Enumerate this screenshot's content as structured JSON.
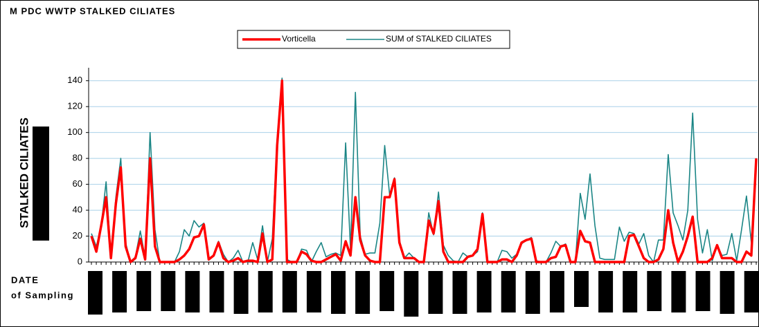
{
  "chart_data": {
    "type": "line",
    "title": "M PDC WWTP STALKED CILIATES",
    "y_label": "STALKED CILIATES",
    "x_label_line1": "DATE",
    "x_label_line2": "of Sampling",
    "ylim": [
      0,
      150
    ],
    "yticks": [
      0,
      20,
      40,
      60,
      80,
      100,
      120,
      140
    ],
    "grid": true,
    "legend": "top",
    "categories": [
      null,
      null,
      null,
      null,
      null,
      null,
      null,
      null,
      null,
      null,
      null,
      null,
      null,
      null,
      null,
      null,
      null,
      null,
      null,
      null,
      null,
      null,
      null,
      null,
      null,
      null,
      null,
      null,
      null,
      null,
      null,
      null,
      null,
      null,
      null,
      null,
      null,
      null,
      null,
      null,
      null,
      null,
      null,
      null,
      null,
      null,
      null,
      null,
      null,
      null,
      null,
      null,
      null,
      null,
      null,
      null,
      null,
      null,
      null,
      null,
      null,
      null,
      null,
      null,
      null,
      null,
      null,
      null,
      null,
      null,
      null,
      null,
      null,
      null,
      null,
      null,
      null,
      null,
      null,
      null,
      null,
      null,
      null,
      null,
      null,
      null,
      null,
      null,
      null,
      null,
      null,
      null,
      null,
      null,
      null,
      null,
      null,
      null,
      null,
      null,
      null,
      null,
      null,
      null,
      null,
      null,
      null,
      null,
      null,
      null,
      null,
      null,
      null,
      null,
      null,
      null,
      null,
      null,
      null,
      null,
      null,
      null,
      null,
      null,
      null,
      null,
      null,
      null,
      null,
      null,
      null,
      null,
      null,
      null,
      null,
      null,
      null
    ],
    "series": [
      {
        "name": "Vorticella",
        "color": "#ff0000",
        "width": 3.5,
        "values": [
          20,
          8,
          28,
          50,
          3,
          45,
          73,
          12,
          0,
          3,
          18,
          2,
          80,
          12,
          0,
          0,
          0,
          0,
          2,
          5,
          10,
          19,
          20,
          29,
          2,
          5,
          15,
          3,
          0,
          1,
          3,
          0,
          1,
          1,
          0,
          22,
          0,
          2,
          90,
          140,
          0,
          0,
          0,
          8,
          6,
          1,
          0,
          0,
          2,
          4,
          6,
          1,
          16,
          5,
          50,
          17,
          5,
          1,
          0,
          0,
          50,
          50,
          64,
          15,
          3,
          3,
          3,
          0,
          0,
          32,
          22,
          47,
          8,
          0,
          0,
          0,
          0,
          4,
          5,
          10,
          37,
          0,
          0,
          0,
          2,
          2,
          0,
          5,
          15,
          17,
          18,
          0,
          0,
          0,
          3,
          4,
          12,
          13,
          0,
          0,
          24,
          16,
          15,
          0,
          0,
          0,
          0,
          0,
          0,
          0,
          20,
          21,
          12,
          3,
          0,
          0,
          2,
          10,
          40,
          15,
          0,
          8,
          20,
          35,
          0,
          0,
          0,
          3,
          13,
          3,
          3,
          3,
          0,
          0,
          8,
          5,
          80
        ]
      },
      {
        "name": "SUM of STALKED CILIATES",
        "color": "#1a8585",
        "width": 1.6,
        "values": [
          22,
          12,
          28,
          62,
          4,
          50,
          80,
          15,
          0,
          4,
          24,
          3,
          100,
          25,
          0,
          0,
          0,
          0,
          8,
          25,
          20,
          32,
          27,
          30,
          3,
          5,
          16,
          6,
          0,
          3,
          9,
          0,
          0,
          15,
          2,
          28,
          0,
          18,
          95,
          142,
          2,
          0,
          0,
          10,
          9,
          0,
          8,
          15,
          4,
          6,
          7,
          5,
          92,
          10,
          131,
          20,
          6,
          7,
          7,
          30,
          90,
          52,
          65,
          17,
          3,
          7,
          3,
          0,
          0,
          38,
          21,
          54,
          13,
          5,
          1,
          0,
          7,
          4,
          5,
          8,
          38,
          0,
          0,
          0,
          9,
          8,
          3,
          6,
          14,
          17,
          19,
          1,
          0,
          0,
          7,
          16,
          12,
          14,
          0,
          0,
          53,
          33,
          68,
          28,
          3,
          2,
          2,
          2,
          27,
          16,
          23,
          22,
          14,
          22,
          5,
          0,
          17,
          17,
          83,
          38,
          28,
          17,
          40,
          115,
          33,
          7,
          25,
          1,
          13,
          5,
          6,
          22,
          1,
          25,
          51,
          15,
          80
        ]
      }
    ]
  }
}
